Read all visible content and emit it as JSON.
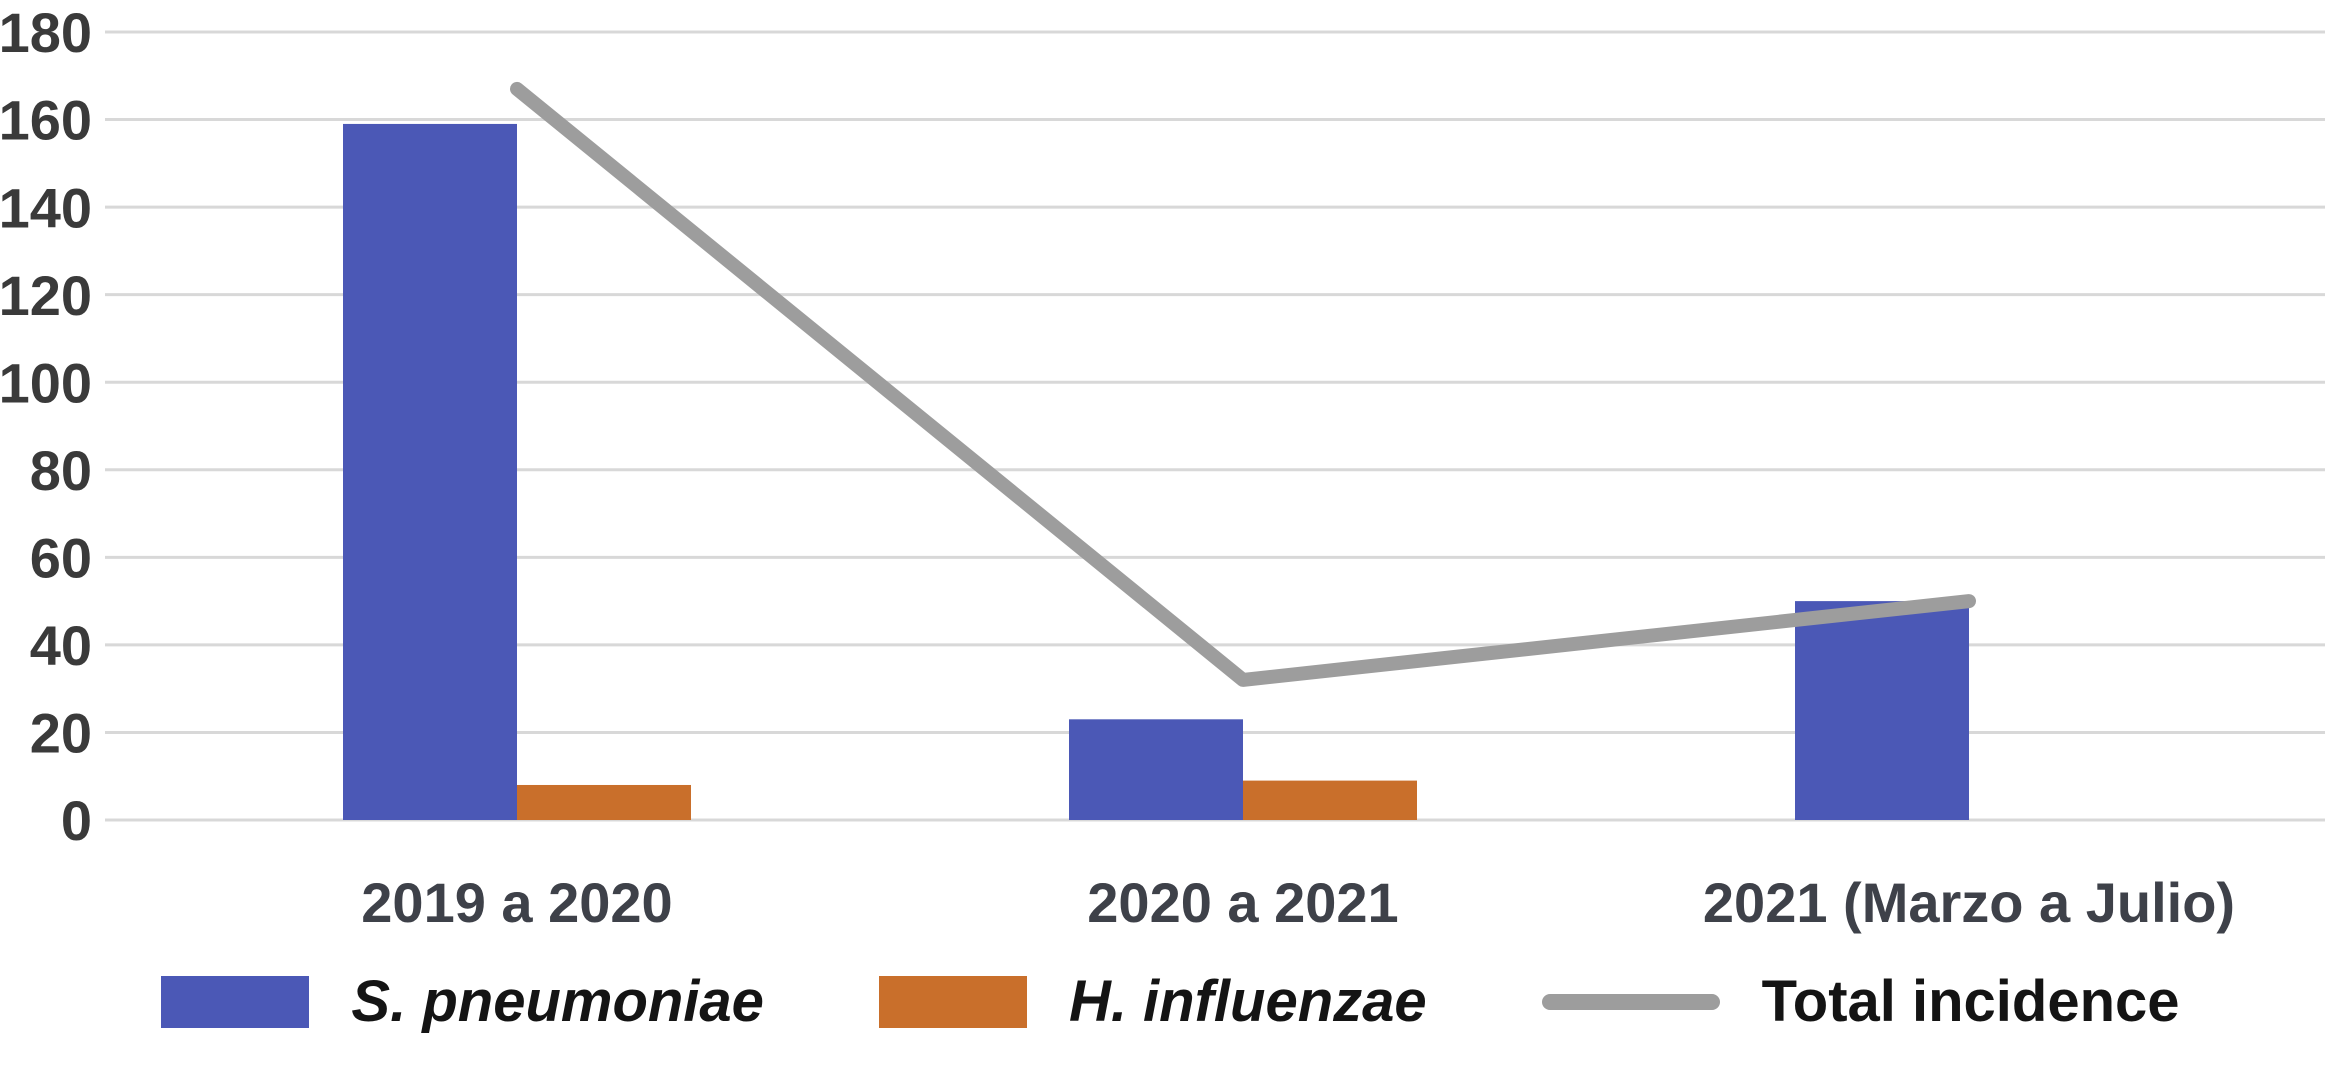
{
  "chart_data": {
    "type": "combo-bar-line",
    "title": "",
    "xlabel": "",
    "ylabel": "",
    "categories": [
      "2019 a 2020",
      "2020 a 2021",
      "2021 (Marzo a Julio)"
    ],
    "bar_series": [
      {
        "name": "S. pneumoniae",
        "color": "#4B58B6",
        "values": [
          159,
          23,
          50
        ]
      },
      {
        "name": "H. influenzae",
        "color": "#C96F2B",
        "values": [
          8,
          9,
          0
        ]
      }
    ],
    "line_series": [
      {
        "name": "Total incidence",
        "color": "#9D9D9D",
        "values": [
          167,
          32,
          50
        ]
      }
    ],
    "ylim": [
      0,
      180
    ],
    "yticks": [
      0,
      20,
      40,
      60,
      80,
      100,
      120,
      140,
      160,
      180
    ],
    "grid": "horizontal",
    "gridline_color": "#D8D8D8",
    "axis_tick_label_color": "#3A3A3A",
    "x_label_color": "#3E4149",
    "legend_position": "bottom"
  }
}
